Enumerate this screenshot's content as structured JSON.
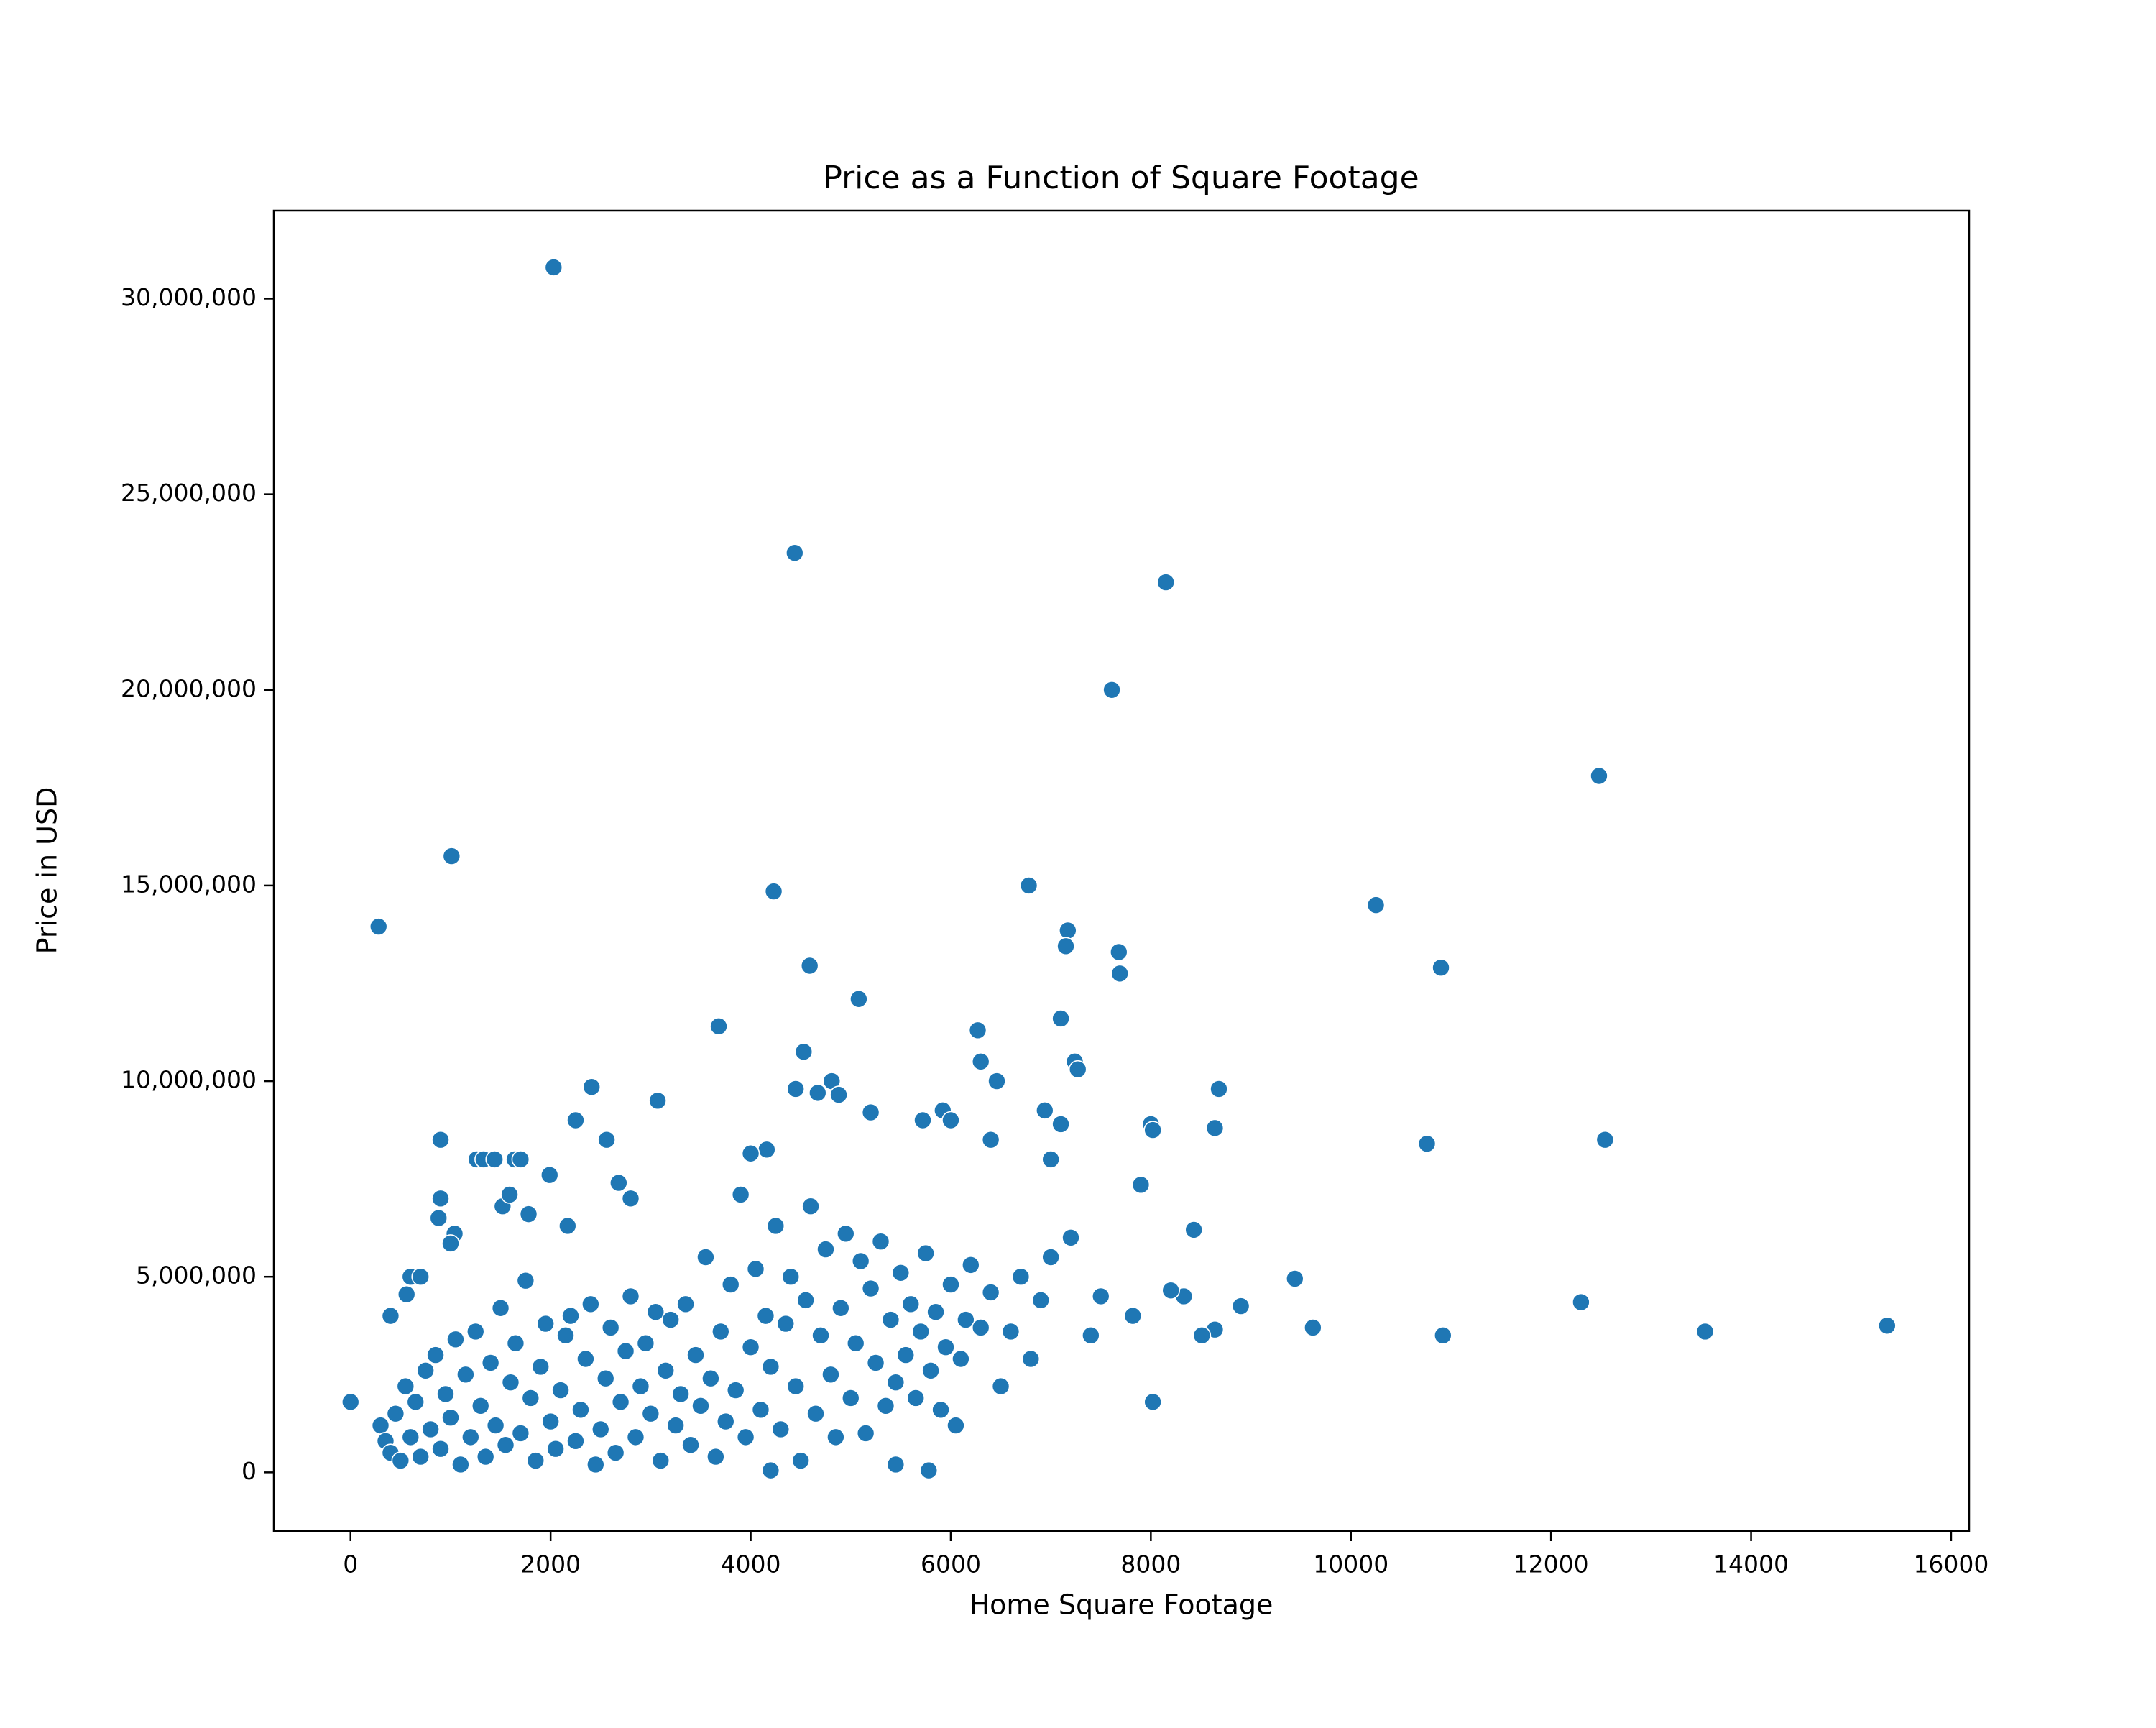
{
  "chart_data": {
    "type": "scatter",
    "title": "Price as a Function of Square Footage",
    "x_label": "Home Square Footage",
    "y_label": "Price in USD",
    "color": "#1f77b4",
    "xlim": [
      -767,
      16180
    ],
    "ylim": [
      -1500000,
      32250000
    ],
    "xticks": [
      0,
      2000,
      4000,
      6000,
      8000,
      10000,
      12000,
      14000,
      16000
    ],
    "yticks": [
      {
        "value": 0,
        "label": "0"
      },
      {
        "value": 5000000,
        "label": "5,000,000"
      },
      {
        "value": 10000000,
        "label": "10,000,000"
      },
      {
        "value": 15000000,
        "label": "15,000,000"
      },
      {
        "value": 20000000,
        "label": "20,000,000"
      },
      {
        "value": 25000000,
        "label": "25,000,000"
      },
      {
        "value": 30000000,
        "label": "30,000,000"
      }
    ],
    "x": [
      2030,
      4440,
      8150,
      7610,
      12480,
      1010,
      280,
      4230,
      6780,
      10250,
      7170,
      7150,
      7680,
      10900,
      4590,
      7690,
      5080,
      7100,
      3680,
      6270,
      4530,
      6300,
      7240,
      7270,
      6460,
      4810,
      2410,
      4450,
      4670,
      4880,
      8680,
      3070,
      5920,
      6940,
      5200,
      6000,
      5720,
      2250,
      7100,
      8000,
      8020,
      8640,
      12540,
      10760,
      900,
      2560,
      1260,
      1330,
      1440,
      1640,
      1700,
      4160,
      4000,
      6400,
      7000,
      1990,
      2680,
      2800,
      900,
      1520,
      1590,
      1040,
      1780,
      880,
      2170,
      8430,
      7900,
      9440,
      9620,
      10920,
      12300,
      13540,
      15360,
      8900,
      8640,
      8510,
      8330,
      8200,
      8020,
      7820,
      5780,
      5450,
      4200,
      0,
      1000,
      600,
      700,
      560,
      400,
      300,
      350,
      400,
      450,
      500,
      550,
      600,
      650,
      700,
      750,
      800,
      850,
      900,
      950,
      1000,
      1050,
      1100,
      1150,
      1200,
      1250,
      1300,
      1350,
      1400,
      1450,
      1500,
      1550,
      1600,
      1650,
      1700,
      1750,
      1800,
      1850,
      1900,
      1950,
      2000,
      2050,
      2100,
      2150,
      2200,
      2250,
      2300,
      2350,
      2400,
      2450,
      2500,
      2550,
      2600,
      2650,
      2700,
      2750,
      2800,
      2850,
      2900,
      2950,
      3000,
      3050,
      3100,
      3150,
      3200,
      3250,
      3300,
      3350,
      3400,
      3450,
      3500,
      3550,
      3600,
      3650,
      3700,
      3750,
      3800,
      3850,
      3900,
      3950,
      4000,
      4050,
      4100,
      4150,
      4200,
      4250,
      4300,
      4350,
      4400,
      4450,
      4500,
      4550,
      4600,
      4650,
      4700,
      4750,
      4800,
      4850,
      4900,
      4950,
      5000,
      5050,
      5100,
      5150,
      5200,
      5250,
      5300,
      5350,
      5400,
      5450,
      5500,
      5550,
      5600,
      5650,
      5700,
      5750,
      5800,
      5850,
      5900,
      5950,
      6000,
      6050,
      6100,
      6150,
      6200,
      6300,
      6400,
      6500,
      6600,
      6700,
      6800,
      6900,
      7000,
      7200,
      7400,
      7500
    ],
    "y": [
      30800000,
      23500000,
      22750000,
      20000000,
      17800000,
      15750000,
      13950000,
      14850000,
      15000000,
      14500000,
      13850000,
      13450000,
      13300000,
      12900000,
      12950000,
      12750000,
      12100000,
      11600000,
      11400000,
      11300000,
      10750000,
      10500000,
      10500000,
      10300000,
      10000000,
      10000000,
      9850000,
      9800000,
      9700000,
      9650000,
      9800000,
      9500000,
      9250000,
      9250000,
      9200000,
      9000000,
      9000000,
      9000000,
      8900000,
      8900000,
      8750000,
      8800000,
      8500000,
      8400000,
      8500000,
      8500000,
      8000000,
      8000000,
      8000000,
      8000000,
      8000000,
      8250000,
      8150000,
      8500000,
      8000000,
      7600000,
      7400000,
      7000000,
      7000000,
      6800000,
      7100000,
      6100000,
      6600000,
      6500000,
      6300000,
      6200000,
      7350000,
      4950000,
      3700000,
      3500000,
      4350000,
      3600000,
      3750000,
      4250000,
      3650000,
      3500000,
      4500000,
      4650000,
      1800000,
      4000000,
      50000,
      200000,
      50000,
      1800000,
      5850000,
      5000000,
      5000000,
      4550000,
      4000000,
      1200000,
      800000,
      500000,
      1500000,
      300000,
      2200000,
      900000,
      1800000,
      400000,
      2600000,
      1100000,
      3000000,
      600000,
      2000000,
      1400000,
      3400000,
      200000,
      2500000,
      900000,
      3600000,
      1700000,
      400000,
      2800000,
      1200000,
      4200000,
      700000,
      2300000,
      3300000,
      1000000,
      4900000,
      1900000,
      300000,
      2700000,
      3800000,
      1300000,
      600000,
      2100000,
      3500000,
      4000000,
      800000,
      1600000,
      2900000,
      4300000,
      200000,
      1100000,
      2400000,
      3700000,
      500000,
      1800000,
      3100000,
      4500000,
      900000,
      2200000,
      3300000,
      1500000,
      4100000,
      300000,
      2600000,
      3900000,
      1200000,
      2000000,
      4300000,
      700000,
      3000000,
      1700000,
      5500000,
      2400000,
      400000,
      3600000,
      1300000,
      4800000,
      2100000,
      7100000,
      900000,
      3200000,
      5200000,
      1600000,
      4000000,
      2700000,
      6300000,
      1100000,
      3800000,
      5000000,
      2200000,
      300000,
      4400000,
      6800000,
      1500000,
      3500000,
      5700000,
      2500000,
      900000,
      4200000,
      6100000,
      1900000,
      3300000,
      5400000,
      1000000,
      4700000,
      2800000,
      5900000,
      1700000,
      3900000,
      2300000,
      5100000,
      3000000,
      4300000,
      1900000,
      3600000,
      5600000,
      2600000,
      4100000,
      1600000,
      3200000,
      4800000,
      1200000,
      2900000,
      3900000,
      5300000,
      3700000,
      4600000,
      2200000,
      3600000,
      5000000,
      2900000,
      4400000,
      5500000,
      6000000,
      3500000,
      4500000
    ]
  }
}
